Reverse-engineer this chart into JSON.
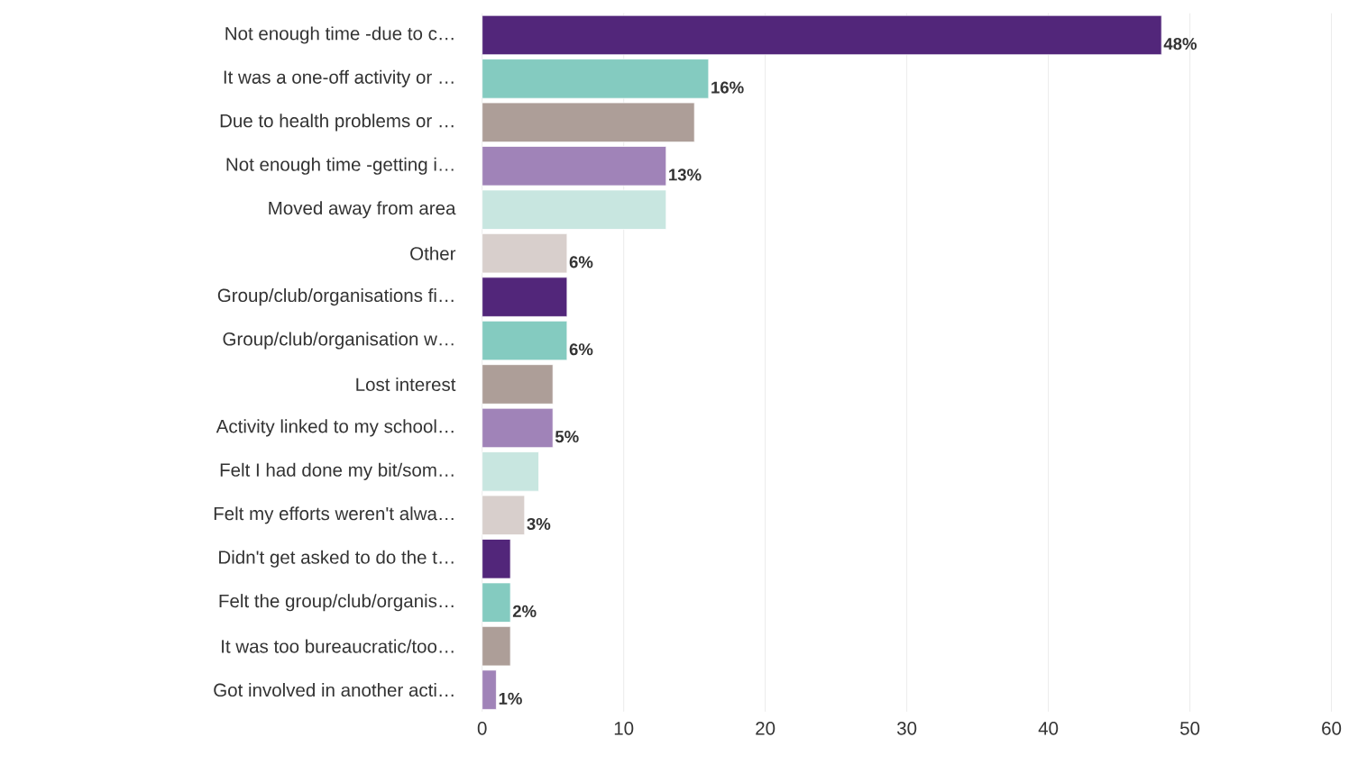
{
  "chart_data": {
    "type": "bar",
    "orientation": "horizontal",
    "categories": [
      "Not enough time -due to c…",
      "It was a one-off activity or …",
      "Due to health problems or …",
      "Not enough time -getting i…",
      "Moved away from area",
      "Other",
      "Group/club/organisations fi…",
      "Group/club/organisation w…",
      "Lost interest",
      "Activity linked to my school…",
      "Felt I had done my bit/som…",
      "Felt my efforts weren't alwa…",
      "Didn't get asked to do the t…",
      "Felt the group/club/organis…",
      "It was too bureaucratic/too…",
      "Got involved in another acti…"
    ],
    "values": [
      48,
      16,
      15,
      13,
      13,
      6,
      6,
      6,
      5,
      5,
      4,
      3,
      2,
      2,
      2,
      1
    ],
    "value_labels": [
      "48%",
      "16%",
      null,
      "13%",
      null,
      "6%",
      null,
      "6%",
      null,
      "5%",
      null,
      "3%",
      null,
      "2%",
      null,
      "1%"
    ],
    "colors": [
      "#52267a",
      "#84cbc0",
      "#ad9e98",
      "#a083b8",
      "#c8e6e0",
      "#d8cfcc",
      "#52267a",
      "#84cbc0",
      "#ad9e98",
      "#a083b8",
      "#c8e6e0",
      "#d8cfcc",
      "#52267a",
      "#84cbc0",
      "#ad9e98",
      "#a083b8"
    ],
    "xlim": [
      0,
      60
    ],
    "xticks": [
      0,
      10,
      20,
      30,
      40,
      50,
      60
    ],
    "grid": "x"
  }
}
